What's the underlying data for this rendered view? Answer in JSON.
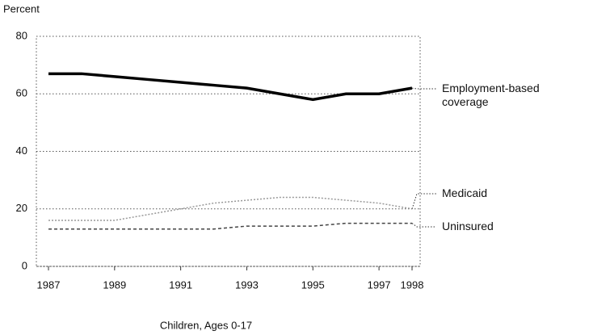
{
  "chart_data": {
    "type": "line",
    "y_label": "Percent",
    "x_label": "Children, Ages 0-17",
    "x": [
      1987,
      1988,
      1989,
      1990,
      1991,
      1992,
      1993,
      1994,
      1995,
      1996,
      1997,
      1998
    ],
    "series": [
      {
        "name": "Employment-based coverage",
        "color": "#000000",
        "style": "solid",
        "values": [
          67,
          67,
          66,
          65,
          64,
          63,
          62,
          60,
          58,
          60,
          60,
          62
        ]
      },
      {
        "name": "Medicaid",
        "color": "#999999",
        "style": "dotted",
        "values": [
          16,
          16,
          16,
          18,
          20,
          22,
          23,
          24,
          24,
          23,
          22,
          20
        ]
      },
      {
        "name": "Uninsured",
        "color": "#444444",
        "style": "dashed",
        "values": [
          13,
          13,
          13,
          13,
          13,
          13,
          14,
          14,
          14,
          15,
          15,
          15
        ]
      }
    ],
    "xlim": [
      1987,
      1998
    ],
    "xticks": [
      1987,
      1989,
      1991,
      1993,
      1995,
      1997,
      1998
    ],
    "ylim": [
      0,
      80
    ],
    "yticks": [
      0,
      20,
      40,
      60,
      80
    ],
    "grid": true
  }
}
